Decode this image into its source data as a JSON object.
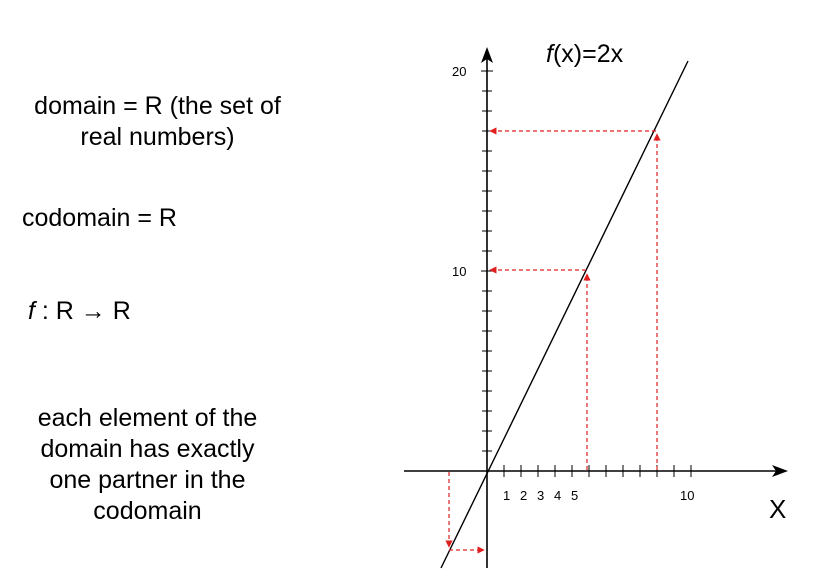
{
  "left_text": {
    "domain_line1": "domain = R (the set of",
    "domain_line2": "real numbers)",
    "codomain": "codomain = R",
    "mapping_f": "f",
    "mapping_rest": " : R → R",
    "property_lines": [
      "each element of the",
      "domain has exactly",
      "one partner in the",
      "codomain"
    ]
  },
  "graph": {
    "function_label_f": "f",
    "function_label_rest": "(x)=2x",
    "x_axis_name": "X",
    "y_tick_labels": [
      "20",
      "10"
    ],
    "x_tick_labels": [
      "1",
      "2",
      "3",
      "4",
      "5",
      "10"
    ],
    "line_color": "#000000",
    "guide_color": "#e02020"
  },
  "chart_data": {
    "type": "line",
    "function": "f(x)=2x",
    "x_range": [
      -1.2,
      12
    ],
    "y_range": [
      -2.4,
      24
    ],
    "example_points": [
      [
        5,
        10
      ],
      [
        8.5,
        17
      ],
      [
        -1.2,
        -2.4
      ]
    ]
  }
}
